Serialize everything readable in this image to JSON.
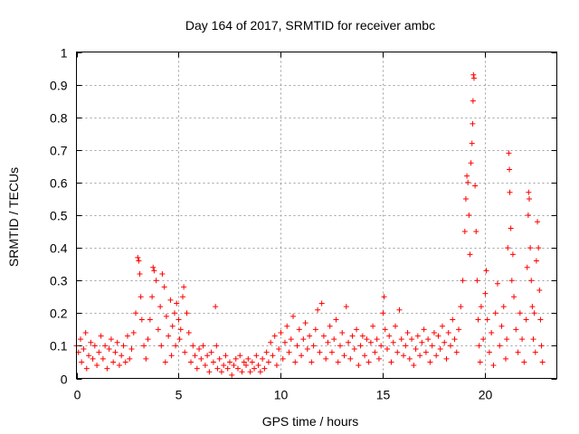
{
  "chart_data": {
    "type": "scatter",
    "title": "Day 164 of 2017, SRMTID for receiver ambc",
    "xlabel": "GPS time / hours",
    "ylabel": "SRMTID / TECUs",
    "xlim": [
      0,
      23.5
    ],
    "ylim": [
      0,
      1
    ],
    "xticks": [
      0,
      5,
      10,
      15,
      20
    ],
    "yticks": [
      0,
      0.1,
      0.2,
      0.3,
      0.4,
      0.5,
      0.6,
      0.7,
      0.8,
      0.9,
      1
    ],
    "xtick_labels": [
      "0",
      "5",
      "10",
      "15",
      "20"
    ],
    "ytick_labels": [
      "0",
      "0.1",
      "0.2",
      "0.3",
      "0.4",
      "0.5",
      "0.6",
      "0.7",
      "0.8",
      "0.9",
      "1"
    ],
    "grid": true,
    "marker": "+",
    "color": "#ff0000",
    "series": [
      {
        "name": "SRMTID",
        "points": [
          [
            0.0,
            0.1
          ],
          [
            0.1,
            0.08
          ],
          [
            0.2,
            0.12
          ],
          [
            0.25,
            0.05
          ],
          [
            0.35,
            0.09
          ],
          [
            0.45,
            0.14
          ],
          [
            0.5,
            0.03
          ],
          [
            0.6,
            0.07
          ],
          [
            0.7,
            0.11
          ],
          [
            0.8,
            0.06
          ],
          [
            0.9,
            0.1
          ],
          [
            1.0,
            0.04
          ],
          [
            1.1,
            0.08
          ],
          [
            1.2,
            0.13
          ],
          [
            1.3,
            0.06
          ],
          [
            1.4,
            0.1
          ],
          [
            1.5,
            0.03
          ],
          [
            1.6,
            0.09
          ],
          [
            1.7,
            0.12
          ],
          [
            1.8,
            0.05
          ],
          [
            1.9,
            0.08
          ],
          [
            2.0,
            0.11
          ],
          [
            2.1,
            0.04
          ],
          [
            2.2,
            0.07
          ],
          [
            2.3,
            0.1
          ],
          [
            2.4,
            0.05
          ],
          [
            2.5,
            0.13
          ],
          [
            2.6,
            0.06
          ],
          [
            2.7,
            0.09
          ],
          [
            2.8,
            0.14
          ],
          [
            2.9,
            0.2
          ],
          [
            3.0,
            0.37
          ],
          [
            3.05,
            0.36
          ],
          [
            3.1,
            0.32
          ],
          [
            3.15,
            0.25
          ],
          [
            3.2,
            0.18
          ],
          [
            3.3,
            0.1
          ],
          [
            3.4,
            0.06
          ],
          [
            3.5,
            0.12
          ],
          [
            3.6,
            0.18
          ],
          [
            3.7,
            0.25
          ],
          [
            3.75,
            0.34
          ],
          [
            3.8,
            0.33
          ],
          [
            3.9,
            0.3
          ],
          [
            4.0,
            0.15
          ],
          [
            4.1,
            0.22
          ],
          [
            4.15,
            0.1
          ],
          [
            4.2,
            0.32
          ],
          [
            4.3,
            0.28
          ],
          [
            4.35,
            0.05
          ],
          [
            4.4,
            0.19
          ],
          [
            4.5,
            0.13
          ],
          [
            4.6,
            0.24
          ],
          [
            4.65,
            0.07
          ],
          [
            4.7,
            0.16
          ],
          [
            4.8,
            0.2
          ],
          [
            4.85,
            0.1
          ],
          [
            4.9,
            0.23
          ],
          [
            5.0,
            0.18
          ],
          [
            5.05,
            0.12
          ],
          [
            5.1,
            0.15
          ],
          [
            5.2,
            0.25
          ],
          [
            5.25,
            0.28
          ],
          [
            5.3,
            0.08
          ],
          [
            5.4,
            0.2
          ],
          [
            5.5,
            0.14
          ],
          [
            5.6,
            0.05
          ],
          [
            5.7,
            0.1
          ],
          [
            5.8,
            0.07
          ],
          [
            5.9,
            0.03
          ],
          [
            6.0,
            0.09
          ],
          [
            6.1,
            0.06
          ],
          [
            6.2,
            0.1
          ],
          [
            6.3,
            0.04
          ],
          [
            6.4,
            0.07
          ],
          [
            6.5,
            0.02
          ],
          [
            6.6,
            0.08
          ],
          [
            6.7,
            0.05
          ],
          [
            6.8,
            0.22
          ],
          [
            6.85,
            0.1
          ],
          [
            6.9,
            0.03
          ],
          [
            7.0,
            0.06
          ],
          [
            7.1,
            0.02
          ],
          [
            7.2,
            0.04
          ],
          [
            7.3,
            0.07
          ],
          [
            7.4,
            0.03
          ],
          [
            7.5,
            0.05
          ],
          [
            7.6,
            0.01
          ],
          [
            7.7,
            0.04
          ],
          [
            7.8,
            0.06
          ],
          [
            7.9,
            0.03
          ],
          [
            8.0,
            0.07
          ],
          [
            8.1,
            0.02
          ],
          [
            8.2,
            0.05
          ],
          [
            8.3,
            0.04
          ],
          [
            8.4,
            0.06
          ],
          [
            8.5,
            0.02
          ],
          [
            8.6,
            0.05
          ],
          [
            8.7,
            0.03
          ],
          [
            8.8,
            0.07
          ],
          [
            8.9,
            0.04
          ],
          [
            9.0,
            0.02
          ],
          [
            9.1,
            0.06
          ],
          [
            9.2,
            0.03
          ],
          [
            9.3,
            0.08
          ],
          [
            9.4,
            0.05
          ],
          [
            9.5,
            0.11
          ],
          [
            9.6,
            0.07
          ],
          [
            9.7,
            0.13
          ],
          [
            9.8,
            0.04
          ],
          [
            9.9,
            0.09
          ],
          [
            10.0,
            0.14
          ],
          [
            10.1,
            0.06
          ],
          [
            10.2,
            0.11
          ],
          [
            10.3,
            0.16
          ],
          [
            10.4,
            0.08
          ],
          [
            10.5,
            0.12
          ],
          [
            10.6,
            0.19
          ],
          [
            10.7,
            0.05
          ],
          [
            10.8,
            0.1
          ],
          [
            10.9,
            0.15
          ],
          [
            11.0,
            0.07
          ],
          [
            11.1,
            0.12
          ],
          [
            11.2,
            0.17
          ],
          [
            11.3,
            0.09
          ],
          [
            11.4,
            0.13
          ],
          [
            11.5,
            0.05
          ],
          [
            11.6,
            0.1
          ],
          [
            11.7,
            0.15
          ],
          [
            11.8,
            0.21
          ],
          [
            11.9,
            0.08
          ],
          [
            12.0,
            0.23
          ],
          [
            12.1,
            0.13
          ],
          [
            12.2,
            0.06
          ],
          [
            12.3,
            0.11
          ],
          [
            12.4,
            0.16
          ],
          [
            12.5,
            0.08
          ],
          [
            12.6,
            0.12
          ],
          [
            12.7,
            0.18
          ],
          [
            12.8,
            0.05
          ],
          [
            12.9,
            0.1
          ],
          [
            13.0,
            0.14
          ],
          [
            13.1,
            0.07
          ],
          [
            13.2,
            0.22
          ],
          [
            13.3,
            0.11
          ],
          [
            13.4,
            0.06
          ],
          [
            13.5,
            0.13
          ],
          [
            13.6,
            0.09
          ],
          [
            13.7,
            0.15
          ],
          [
            13.8,
            0.04
          ],
          [
            13.9,
            0.1
          ],
          [
            14.0,
            0.13
          ],
          [
            14.1,
            0.07
          ],
          [
            14.2,
            0.12
          ],
          [
            14.3,
            0.05
          ],
          [
            14.4,
            0.11
          ],
          [
            14.5,
            0.16
          ],
          [
            14.6,
            0.08
          ],
          [
            14.7,
            0.12
          ],
          [
            14.8,
            0.06
          ],
          [
            14.9,
            0.1
          ],
          [
            15.0,
            0.2
          ],
          [
            15.05,
            0.25
          ],
          [
            15.1,
            0.15
          ],
          [
            15.2,
            0.09
          ],
          [
            15.3,
            0.13
          ],
          [
            15.4,
            0.05
          ],
          [
            15.5,
            0.11
          ],
          [
            15.6,
            0.16
          ],
          [
            15.7,
            0.08
          ],
          [
            15.8,
            0.21
          ],
          [
            15.9,
            0.12
          ],
          [
            16.0,
            0.07
          ],
          [
            16.1,
            0.1
          ],
          [
            16.2,
            0.14
          ],
          [
            16.3,
            0.06
          ],
          [
            16.4,
            0.12
          ],
          [
            16.5,
            0.04
          ],
          [
            16.6,
            0.09
          ],
          [
            16.7,
            0.13
          ],
          [
            16.8,
            0.07
          ],
          [
            16.9,
            0.11
          ],
          [
            17.0,
            0.15
          ],
          [
            17.1,
            0.08
          ],
          [
            17.2,
            0.12
          ],
          [
            17.3,
            0.05
          ],
          [
            17.4,
            0.1
          ],
          [
            17.5,
            0.14
          ],
          [
            17.6,
            0.07
          ],
          [
            17.7,
            0.13
          ],
          [
            17.8,
            0.09
          ],
          [
            17.9,
            0.16
          ],
          [
            18.0,
            0.11
          ],
          [
            18.1,
            0.06
          ],
          [
            18.2,
            0.14
          ],
          [
            18.3,
            0.1
          ],
          [
            18.4,
            0.18
          ],
          [
            18.5,
            0.12
          ],
          [
            18.6,
            0.08
          ],
          [
            18.7,
            0.15
          ],
          [
            18.8,
            0.22
          ],
          [
            18.9,
            0.3
          ],
          [
            19.0,
            0.45
          ],
          [
            19.05,
            0.55
          ],
          [
            19.1,
            0.62
          ],
          [
            19.15,
            0.6
          ],
          [
            19.2,
            0.5
          ],
          [
            19.25,
            0.38
          ],
          [
            19.3,
            0.66
          ],
          [
            19.35,
            0.72
          ],
          [
            19.38,
            0.78
          ],
          [
            19.4,
            0.85
          ],
          [
            19.42,
            0.93
          ],
          [
            19.45,
            0.92
          ],
          [
            19.5,
            0.59
          ],
          [
            19.55,
            0.45
          ],
          [
            19.6,
            0.3
          ],
          [
            19.65,
            0.18
          ],
          [
            19.7,
            0.1
          ],
          [
            19.75,
            0.05
          ],
          [
            19.8,
            0.22
          ],
          [
            19.9,
            0.12
          ],
          [
            20.0,
            0.26
          ],
          [
            20.05,
            0.33
          ],
          [
            20.1,
            0.18
          ],
          [
            20.2,
            0.08
          ],
          [
            20.3,
            0.14
          ],
          [
            20.4,
            0.04
          ],
          [
            20.5,
            0.2
          ],
          [
            20.6,
            0.29
          ],
          [
            20.7,
            0.1
          ],
          [
            20.8,
            0.16
          ],
          [
            20.9,
            0.22
          ],
          [
            21.0,
            0.06
          ],
          [
            21.05,
            0.12
          ],
          [
            21.1,
            0.4
          ],
          [
            21.15,
            0.69
          ],
          [
            21.18,
            0.64
          ],
          [
            21.2,
            0.57
          ],
          [
            21.25,
            0.46
          ],
          [
            21.3,
            0.3
          ],
          [
            21.35,
            0.38
          ],
          [
            21.4,
            0.25
          ],
          [
            21.5,
            0.15
          ],
          [
            21.6,
            0.08
          ],
          [
            21.7,
            0.2
          ],
          [
            21.8,
            0.12
          ],
          [
            21.9,
            0.05
          ],
          [
            22.0,
            0.18
          ],
          [
            22.05,
            0.34
          ],
          [
            22.1,
            0.5
          ],
          [
            22.12,
            0.57
          ],
          [
            22.15,
            0.55
          ],
          [
            22.2,
            0.4
          ],
          [
            22.25,
            0.3
          ],
          [
            22.3,
            0.22
          ],
          [
            22.35,
            0.12
          ],
          [
            22.4,
            0.2
          ],
          [
            22.45,
            0.08
          ],
          [
            22.5,
            0.36
          ],
          [
            22.55,
            0.48
          ],
          [
            22.6,
            0.4
          ],
          [
            22.65,
            0.27
          ],
          [
            22.7,
            0.18
          ],
          [
            22.75,
            0.1
          ],
          [
            22.8,
            0.05
          ]
        ]
      }
    ]
  }
}
